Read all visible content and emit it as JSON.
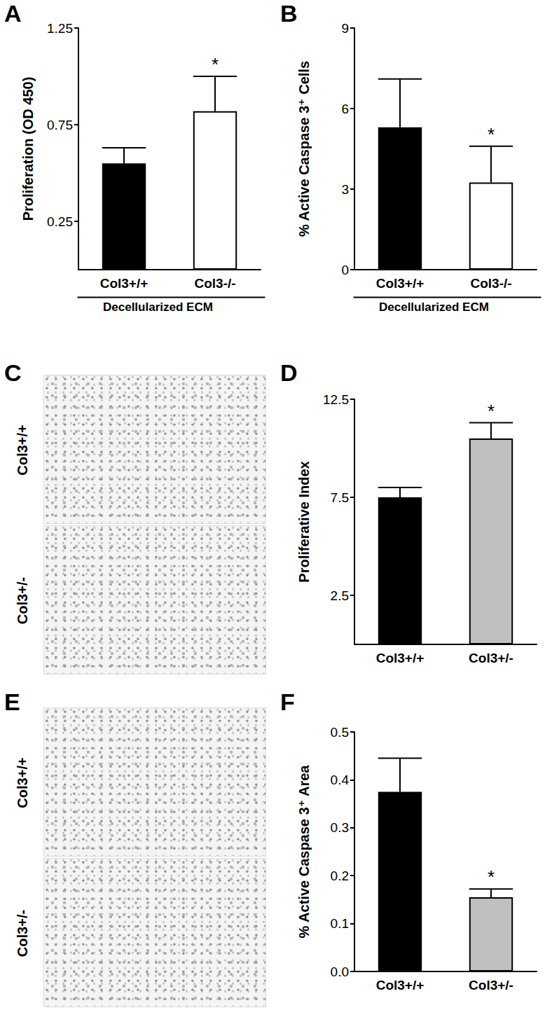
{
  "chart_data": [
    {
      "type": "bar",
      "panel": "A",
      "categories": [
        "Col3+/+",
        "Col3-/-"
      ],
      "xlabel": "Decellularized ECM",
      "ylabel": "Proliferation (OD 450)",
      "values": [
        0.55,
        0.82
      ],
      "errors": [
        0.08,
        0.18
      ],
      "colors": [
        "#000000",
        "#ffffff"
      ],
      "ylim": [
        0,
        1.25
      ],
      "yticks": [
        0.25,
        0.75,
        1.25
      ],
      "grid": false,
      "annotations": [
        {
          "category": "Col3-/-",
          "text": "*"
        }
      ]
    },
    {
      "type": "bar",
      "panel": "B",
      "categories": [
        "Col3+/+",
        "Col3-/-"
      ],
      "xlabel": "Decellularized ECM",
      "ylabel": "% Active Caspase 3⁺ Cells",
      "values": [
        5.3,
        3.25
      ],
      "errors": [
        1.8,
        1.35
      ],
      "colors": [
        "#000000",
        "#ffffff"
      ],
      "ylim": [
        0,
        9
      ],
      "yticks": [
        0,
        3,
        6,
        9
      ],
      "grid": false,
      "annotations": [
        {
          "category": "Col3-/-",
          "text": "*"
        }
      ]
    },
    {
      "type": "bar",
      "panel": "D",
      "categories": [
        "Col3+/+",
        "Col3+/-"
      ],
      "ylabel": "Proliferative Index",
      "values": [
        7.5,
        10.5
      ],
      "errors": [
        0.5,
        0.8
      ],
      "colors": [
        "#000000",
        "#c0c0c0"
      ],
      "ylim": [
        0,
        12.5
      ],
      "yticks": [
        2.5,
        7.5,
        12.5
      ],
      "grid": false,
      "annotations": [
        {
          "category": "Col3+/-",
          "text": "*"
        }
      ]
    },
    {
      "type": "bar",
      "panel": "F",
      "categories": [
        "Col3+/+",
        "Col3+/-"
      ],
      "ylabel": "% Active Caspase 3⁺ Area",
      "values": [
        0.375,
        0.155
      ],
      "errors": [
        0.07,
        0.017
      ],
      "colors": [
        "#000000",
        "#c0c0c0"
      ],
      "ylim": [
        0,
        0.5
      ],
      "yticks": [
        {
          "value": 0,
          "label": "0.0"
        },
        0.1,
        0.2,
        0.3,
        0.4,
        0.5
      ],
      "grid": false,
      "annotations": [
        {
          "category": "Col3+/-",
          "text": "*"
        }
      ]
    }
  ],
  "images": [
    {
      "panel": "C",
      "labels": [
        "Col3+/+",
        "Col3+/-"
      ]
    },
    {
      "panel": "E",
      "labels": [
        "Col3+/+",
        "Col3+/-"
      ]
    }
  ]
}
